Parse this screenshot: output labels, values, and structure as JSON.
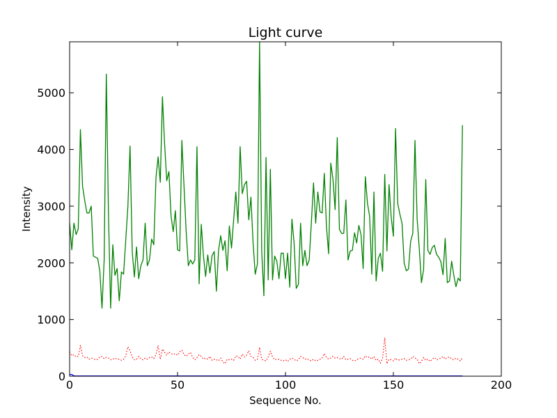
{
  "chart_data": {
    "type": "line",
    "title": "Light curve",
    "xlabel": "Sequence No.",
    "ylabel": "Intensity",
    "xlim": [
      0,
      200
    ],
    "ylim": [
      0,
      5900
    ],
    "xticks": [
      0,
      50,
      100,
      150,
      200
    ],
    "yticks": [
      0,
      1000,
      2000,
      3000,
      4000,
      5000
    ],
    "grid": false,
    "legend": "none",
    "series": [
      {
        "color": "#008000",
        "style": "solid",
        "x": [
          0,
          1,
          2,
          3,
          4,
          5,
          6,
          7,
          8,
          9,
          10,
          11,
          12,
          13,
          14,
          15,
          16,
          17,
          18,
          19,
          20,
          21,
          22,
          23,
          24,
          25,
          26,
          27,
          28,
          29,
          30,
          31,
          32,
          33,
          34,
          35,
          36,
          37,
          38,
          39,
          40,
          41,
          42,
          43,
          44,
          45,
          46,
          47,
          48,
          49,
          50,
          51,
          52,
          53,
          54,
          55,
          56,
          57,
          58,
          59,
          60,
          61,
          62,
          63,
          64,
          65,
          66,
          67,
          68,
          69,
          70,
          71,
          72,
          73,
          74,
          75,
          76,
          77,
          78,
          79,
          80,
          81,
          82,
          83,
          84,
          85,
          86,
          87,
          88,
          89,
          90,
          91,
          92,
          93,
          94,
          95,
          96,
          97,
          98,
          99,
          100,
          101,
          102,
          103,
          104,
          105,
          106,
          107,
          108,
          109,
          110,
          111,
          112,
          113,
          114,
          115,
          116,
          117,
          118,
          119,
          120,
          121,
          122,
          123,
          124,
          125,
          126,
          127,
          128,
          129,
          130,
          131,
          132,
          133,
          134,
          135,
          136,
          137,
          138,
          139,
          140,
          141,
          142,
          143,
          144,
          145,
          146,
          147,
          148,
          149,
          150,
          151,
          152,
          153,
          154,
          155,
          156,
          157,
          158,
          159,
          160,
          161,
          162,
          163,
          164,
          165,
          166,
          167,
          168,
          169,
          170,
          171,
          172,
          173,
          174,
          175,
          176,
          177,
          178,
          179,
          180,
          181,
          182
        ],
        "y": [
          2700,
          2230,
          2700,
          2500,
          2600,
          4350,
          3350,
          3100,
          2880,
          2880,
          3000,
          2120,
          2100,
          2080,
          1850,
          1200,
          2050,
          5330,
          2850,
          1200,
          2320,
          1780,
          1900,
          1330,
          1840,
          1800,
          2400,
          3000,
          4060,
          2200,
          1750,
          2280,
          1720,
          1950,
          2050,
          2700,
          1950,
          2050,
          2420,
          2320,
          3500,
          3870,
          3420,
          4930,
          4100,
          3450,
          3610,
          2820,
          2550,
          2920,
          2230,
          2210,
          4160,
          3350,
          2550,
          1950,
          2050,
          1980,
          2050,
          4050,
          1630,
          2680,
          2120,
          1760,
          2140,
          1820,
          2130,
          2200,
          1500,
          2220,
          2480,
          2220,
          2390,
          1860,
          2650,
          2260,
          2760,
          3250,
          2700,
          4050,
          3220,
          3380,
          3440,
          2760,
          3160,
          2350,
          1800,
          1980,
          5900,
          2200,
          1420,
          3860,
          1700,
          3650,
          1700,
          2120,
          2030,
          1720,
          2170,
          2170,
          1720,
          2170,
          1570,
          2770,
          2350,
          1550,
          1620,
          2700,
          1950,
          2220,
          1950,
          2050,
          2710,
          3410,
          2700,
          3250,
          2900,
          2880,
          3580,
          2640,
          2160,
          3760,
          3480,
          2940,
          4210,
          2590,
          2520,
          2520,
          3110,
          2050,
          2210,
          2220,
          2530,
          2350,
          2660,
          2500,
          1900,
          3520,
          3050,
          2820,
          1800,
          3250,
          1680,
          2080,
          2170,
          1850,
          3560,
          2210,
          3380,
          2800,
          2470,
          4370,
          3050,
          2860,
          2700,
          2000,
          1860,
          1890,
          2380,
          2520,
          4160,
          2780,
          2250,
          1650,
          1880,
          3470,
          2220,
          2150,
          2270,
          2310,
          2150,
          2100,
          2020,
          1790,
          2430,
          1650,
          1680,
          2030,
          1780,
          1580,
          1730,
          1680,
          4430
        ]
      },
      {
        "color": "#ff0000",
        "style": "dotted",
        "x": [
          0,
          1,
          2,
          3,
          4,
          5,
          6,
          7,
          8,
          9,
          10,
          11,
          12,
          13,
          14,
          15,
          16,
          17,
          18,
          19,
          20,
          21,
          22,
          23,
          24,
          25,
          26,
          27,
          28,
          29,
          30,
          31,
          32,
          33,
          34,
          35,
          36,
          37,
          38,
          39,
          40,
          41,
          42,
          43,
          44,
          45,
          46,
          47,
          48,
          49,
          50,
          51,
          52,
          53,
          54,
          55,
          56,
          57,
          58,
          59,
          60,
          61,
          62,
          63,
          64,
          65,
          66,
          67,
          68,
          69,
          70,
          71,
          72,
          73,
          74,
          75,
          76,
          77,
          78,
          79,
          80,
          81,
          82,
          83,
          84,
          85,
          86,
          87,
          88,
          89,
          90,
          91,
          92,
          93,
          94,
          95,
          96,
          97,
          98,
          99,
          100,
          101,
          102,
          103,
          104,
          105,
          106,
          107,
          108,
          109,
          110,
          111,
          112,
          113,
          114,
          115,
          116,
          117,
          118,
          119,
          120,
          121,
          122,
          123,
          124,
          125,
          126,
          127,
          128,
          129,
          130,
          131,
          132,
          133,
          134,
          135,
          136,
          137,
          138,
          139,
          140,
          141,
          142,
          143,
          144,
          145,
          146,
          147,
          148,
          149,
          150,
          151,
          152,
          153,
          154,
          155,
          156,
          157,
          158,
          159,
          160,
          161,
          162,
          163,
          164,
          165,
          166,
          167,
          168,
          169,
          170,
          171,
          172,
          173,
          174,
          175,
          176,
          177,
          178,
          179,
          180,
          181,
          182
        ],
        "y": [
          430,
          360,
          380,
          340,
          350,
          540,
          360,
          330,
          340,
          300,
          320,
          310,
          290,
          300,
          340,
          350,
          310,
          330,
          320,
          290,
          300,
          320,
          300,
          300,
          280,
          300,
          360,
          520,
          450,
          340,
          290,
          300,
          350,
          300,
          290,
          320,
          300,
          330,
          340,
          310,
          380,
          540,
          300,
          480,
          420,
          370,
          430,
          400,
          380,
          400,
          370,
          430,
          460,
          380,
          350,
          390,
          420,
          330,
          290,
          330,
          380,
          350,
          300,
          320,
          300,
          350,
          280,
          300,
          290,
          270,
          320,
          250,
          220,
          300,
          290,
          300,
          280,
          360,
          350,
          300,
          390,
          340,
          370,
          450,
          350,
          330,
          280,
          300,
          510,
          300,
          280,
          270,
          340,
          440,
          340,
          290,
          300,
          300,
          280,
          270,
          290,
          260,
          300,
          320,
          300,
          270,
          290,
          350,
          330,
          300,
          310,
          280,
          270,
          300,
          270,
          280,
          300,
          320,
          400,
          330,
          300,
          320,
          350,
          320,
          330,
          310,
          300,
          350,
          290,
          300,
          310,
          280,
          270,
          290,
          310,
          320,
          300,
          360,
          330,
          340,
          300,
          350,
          280,
          300,
          230,
          320,
          680,
          220,
          300,
          290,
          270,
          320,
          280,
          290,
          300,
          310,
          280,
          290,
          300,
          350,
          320,
          300,
          220,
          260,
          330,
          280,
          300,
          260,
          300,
          330,
          290,
          300,
          320,
          350,
          300,
          330,
          340,
          300,
          290,
          320,
          300,
          270,
          330
        ]
      },
      {
        "color": "#0000ff",
        "style": "solid",
        "x": [
          0,
          1,
          2,
          3,
          4,
          5,
          6,
          7,
          8,
          9,
          10,
          11,
          12,
          13,
          14,
          15,
          16,
          17,
          18,
          19,
          20,
          21,
          22,
          23,
          24,
          25,
          26,
          27,
          28,
          29,
          30,
          31,
          32,
          33,
          34,
          35,
          36,
          37,
          38,
          39,
          40,
          41,
          42,
          43,
          44,
          45,
          46,
          47,
          48,
          49,
          50,
          51,
          52,
          53,
          54,
          55,
          56,
          57,
          58,
          59,
          60,
          61,
          62,
          63,
          64,
          65,
          66,
          67,
          68,
          69,
          70,
          71,
          72,
          73,
          74,
          75,
          76,
          77,
          78,
          79,
          80,
          81,
          82,
          83,
          84,
          85,
          86,
          87,
          88,
          89,
          90,
          91,
          92,
          93,
          94,
          95,
          96,
          97,
          98,
          99,
          100,
          101,
          102,
          103,
          104,
          105,
          106,
          107,
          108,
          109,
          110,
          111,
          112,
          113,
          114,
          115,
          116,
          117,
          118,
          119,
          120,
          121,
          122,
          123,
          124,
          125,
          126,
          127,
          128,
          129,
          130,
          131,
          132,
          133,
          134,
          135,
          136,
          137,
          138,
          139,
          140,
          141,
          142,
          143,
          144,
          145,
          146,
          147,
          148,
          149,
          150,
          151,
          152,
          153,
          154,
          155,
          156,
          157,
          158,
          159,
          160,
          161,
          162,
          163,
          164,
          165,
          166,
          167,
          168,
          169,
          170,
          171,
          172,
          173,
          174,
          175,
          176,
          177,
          178,
          179,
          180,
          181,
          182
        ],
        "y": [
          30,
          30,
          5,
          5,
          5,
          5,
          5,
          5,
          5,
          5,
          5,
          5,
          5,
          5,
          5,
          5,
          5,
          5,
          5,
          5,
          5,
          5,
          5,
          5,
          5,
          5,
          5,
          5,
          5,
          5,
          5,
          5,
          5,
          5,
          5,
          5,
          5,
          5,
          5,
          5,
          5,
          5,
          5,
          5,
          5,
          5,
          5,
          5,
          5,
          5,
          5,
          5,
          5,
          5,
          5,
          5,
          5,
          5,
          5,
          5,
          5,
          5,
          5,
          5,
          5,
          5,
          5,
          5,
          5,
          5,
          5,
          5,
          5,
          5,
          5,
          5,
          5,
          5,
          5,
          5,
          5,
          5,
          5,
          5,
          5,
          5,
          5,
          5,
          5,
          5,
          5,
          5,
          5,
          5,
          5,
          5,
          5,
          5,
          5,
          5,
          5,
          5,
          5,
          5,
          5,
          5,
          5,
          5,
          5,
          5,
          5,
          5,
          5,
          5,
          5,
          5,
          5,
          5,
          5,
          5,
          5,
          5,
          5,
          5,
          5,
          5,
          5,
          5,
          5,
          5,
          5,
          5,
          5,
          5,
          5,
          5,
          5,
          5,
          5,
          5,
          5,
          5,
          5,
          5,
          5,
          5,
          5,
          5,
          5,
          5,
          5,
          5,
          5,
          5,
          5,
          5,
          5,
          5,
          5,
          5,
          5,
          5,
          5,
          5,
          5,
          5,
          5,
          5,
          5,
          5,
          5,
          5,
          5,
          5,
          5,
          5,
          5,
          5,
          5,
          5,
          5,
          5,
          5
        ]
      }
    ]
  }
}
